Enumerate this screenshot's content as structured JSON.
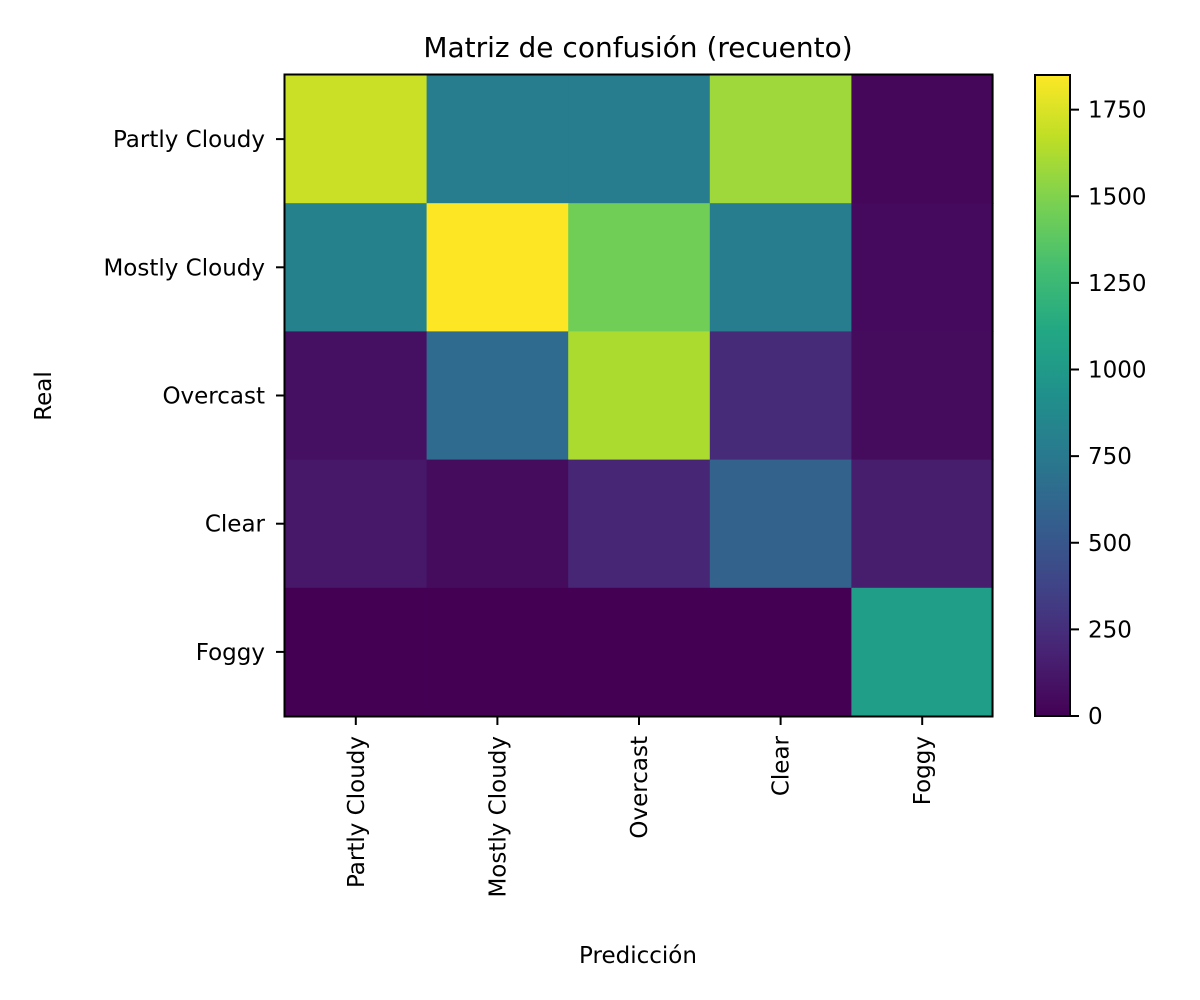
{
  "chart_data": {
    "type": "heatmap",
    "title": "Matriz de confusión (recuento)",
    "xlabel": "Predicción",
    "ylabel": "Real",
    "x_categories": [
      "Partly Cloudy",
      "Mostly Cloudy",
      "Overcast",
      "Clear",
      "Foggy"
    ],
    "y_categories": [
      "Partly Cloudy",
      "Mostly Cloudy",
      "Overcast",
      "Clear",
      "Foggy"
    ],
    "values": [
      [
        1700,
        780,
        780,
        1580,
        30
      ],
      [
        820,
        1850,
        1450,
        780,
        50
      ],
      [
        80,
        650,
        1620,
        230,
        60
      ],
      [
        120,
        60,
        200,
        580,
        150
      ],
      [
        0,
        0,
        0,
        0,
        1040
      ]
    ],
    "colorbar": {
      "colormap": "viridis",
      "range": [
        0,
        1850
      ],
      "ticks": [
        "0",
        "250",
        "500",
        "750",
        "1000",
        "1250",
        "1500",
        "1750"
      ]
    },
    "grid": false
  }
}
